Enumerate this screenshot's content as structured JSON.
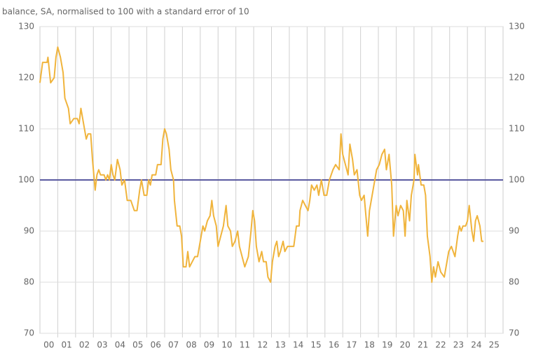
{
  "chart_data": {
    "type": "line",
    "title": "balance, SA, normalised to 100 with a standard error of 10",
    "x": [
      0.0,
      0.15,
      0.4,
      0.45,
      0.6,
      0.8,
      0.9,
      1.0,
      1.15,
      1.3,
      1.4,
      1.6,
      1.7,
      1.9,
      2.1,
      2.2,
      2.3,
      2.5,
      2.6,
      2.7,
      2.85,
      2.95,
      3.1,
      3.2,
      3.3,
      3.4,
      3.6,
      3.7,
      3.8,
      3.9,
      4.0,
      4.1,
      4.2,
      4.35,
      4.5,
      4.6,
      4.75,
      4.9,
      5.1,
      5.3,
      5.45,
      5.6,
      5.7,
      5.85,
      6.0,
      6.1,
      6.2,
      6.3,
      6.5,
      6.6,
      6.8,
      6.9,
      7.0,
      7.1,
      7.25,
      7.35,
      7.5,
      7.55,
      7.7,
      7.85,
      7.95,
      8.05,
      8.2,
      8.3,
      8.4,
      8.55,
      8.7,
      8.85,
      8.95,
      9.05,
      9.15,
      9.25,
      9.4,
      9.55,
      9.65,
      9.75,
      9.9,
      10.0,
      10.15,
      10.3,
      10.45,
      10.55,
      10.7,
      10.8,
      10.95,
      11.1,
      11.2,
      11.35,
      11.5,
      11.7,
      11.85,
      11.95,
      12.05,
      12.15,
      12.3,
      12.45,
      12.55,
      12.7,
      12.8,
      12.95,
      13.05,
      13.2,
      13.3,
      13.4,
      13.5,
      13.65,
      13.75,
      13.9,
      14.1,
      14.25,
      14.4,
      14.55,
      14.6,
      14.75,
      14.9,
      15.05,
      15.15,
      15.25,
      15.4,
      15.55,
      15.65,
      15.8,
      15.95,
      16.1,
      16.25,
      16.45,
      16.6,
      16.8,
      16.9,
      17.0,
      17.15,
      17.3,
      17.4,
      17.55,
      17.65,
      17.8,
      17.95,
      18.05,
      18.2,
      18.3,
      18.4,
      18.5,
      18.65,
      18.8,
      18.9,
      19.05,
      19.2,
      19.35,
      19.45,
      19.6,
      19.75,
      19.85,
      20.0,
      20.1,
      20.25,
      20.4,
      20.5,
      20.6,
      20.75,
      20.85,
      21.0,
      21.05,
      21.2,
      21.25,
      21.4,
      21.55,
      21.65,
      21.75,
      21.9,
      22.0,
      22.1,
      22.2,
      22.35,
      22.5,
      22.7,
      22.85,
      22.95,
      23.1,
      23.3,
      23.45,
      23.55,
      23.65,
      23.75,
      23.9,
      24.0,
      24.1,
      24.25,
      24.35,
      24.45,
      24.55,
      24.7,
      24.8,
      24.9
    ],
    "series": [
      {
        "color": "#f0b43c",
        "values": [
          119,
          123,
          123,
          124,
          119,
          120,
          124,
          126,
          124,
          121,
          116,
          114,
          111,
          112,
          112,
          111,
          114,
          110,
          108,
          109,
          109,
          104,
          98,
          101,
          102,
          101,
          101,
          100,
          101,
          100,
          103,
          101,
          100,
          104,
          102,
          99,
          100,
          96,
          96,
          94,
          94,
          98,
          100,
          97,
          97,
          100,
          99,
          101,
          101,
          103,
          103,
          108,
          110,
          109,
          106,
          102,
          100,
          96,
          91,
          91,
          89,
          83,
          83,
          86,
          83,
          84,
          85,
          85,
          87,
          89,
          91,
          90,
          92,
          93,
          96,
          93,
          91,
          87,
          89,
          91,
          95,
          91,
          90,
          87,
          88,
          90,
          87,
          85,
          83,
          85,
          90,
          94,
          92,
          87,
          84,
          86,
          84,
          84,
          81,
          80,
          84,
          87,
          88,
          85,
          86,
          88,
          86,
          87,
          87,
          87,
          91,
          91,
          94,
          96,
          95,
          94,
          96,
          99,
          98,
          99,
          97,
          100,
          97,
          97,
          100,
          102,
          103,
          102,
          109,
          105,
          103,
          101,
          107,
          104,
          101,
          102,
          97,
          96,
          97,
          93,
          89,
          94,
          97,
          100,
          102,
          103,
          105,
          106,
          102,
          105,
          99,
          89,
          95,
          93,
          95,
          94,
          89,
          96,
          92,
          97,
          100,
          105,
          101,
          103,
          99,
          99,
          97,
          89,
          85,
          80,
          83,
          81,
          84,
          82,
          81,
          84,
          86,
          87,
          85,
          89,
          91,
          90,
          91,
          91,
          92,
          95,
          90,
          88,
          92,
          93,
          91,
          88,
          88
        ]
      }
    ],
    "reference_line": {
      "value": 100,
      "color": "#5a5aa0"
    },
    "xlim": [
      0,
      26
    ],
    "xticks": [
      {
        "value": 0.5,
        "label": "00"
      },
      {
        "value": 1.5,
        "label": "01"
      },
      {
        "value": 2.5,
        "label": "02"
      },
      {
        "value": 3.5,
        "label": "03"
      },
      {
        "value": 4.5,
        "label": "04"
      },
      {
        "value": 5.5,
        "label": "05"
      },
      {
        "value": 6.5,
        "label": "06"
      },
      {
        "value": 7.5,
        "label": "07"
      },
      {
        "value": 8.5,
        "label": "08"
      },
      {
        "value": 9.5,
        "label": "09"
      },
      {
        "value": 10.5,
        "label": "10"
      },
      {
        "value": 11.5,
        "label": "11"
      },
      {
        "value": 12.5,
        "label": "12"
      },
      {
        "value": 13.5,
        "label": "13"
      },
      {
        "value": 14.5,
        "label": "14"
      },
      {
        "value": 15.5,
        "label": "15"
      },
      {
        "value": 16.5,
        "label": "16"
      },
      {
        "value": 17.5,
        "label": "17"
      },
      {
        "value": 18.5,
        "label": "18"
      },
      {
        "value": 19.5,
        "label": "19"
      },
      {
        "value": 20.5,
        "label": "20"
      },
      {
        "value": 21.5,
        "label": "21"
      },
      {
        "value": 22.5,
        "label": "22"
      },
      {
        "value": 23.5,
        "label": "23"
      },
      {
        "value": 24.5,
        "label": "24"
      },
      {
        "value": 25.5,
        "label": "25"
      }
    ],
    "ylim": [
      70,
      130
    ],
    "yticks": [
      70,
      80,
      90,
      100,
      110,
      120,
      130
    ],
    "y2lim": [
      70,
      130
    ],
    "y2ticks": [
      70,
      80,
      90,
      100,
      110,
      120,
      130
    ],
    "grid": true
  }
}
